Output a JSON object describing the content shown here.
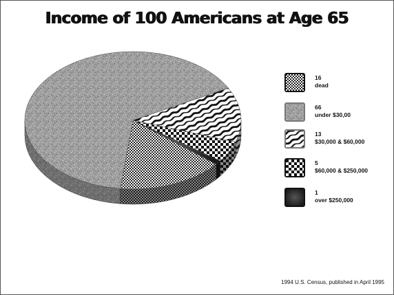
{
  "chart_data": {
    "type": "pie",
    "title": "Income of 100 Americans at Age 65",
    "source": "1994 U.S. Census, published in April 1995",
    "slices": [
      {
        "name": "dead",
        "value": 16,
        "count_label": "16",
        "label": "dead",
        "pattern": "pat-small-check"
      },
      {
        "name": "under $30,00",
        "value": 66,
        "count_label": "66",
        "label": "under $30,00",
        "pattern": "pat-granite"
      },
      {
        "name": "$30,000 & $60,000",
        "value": 13,
        "count_label": "13",
        "label": "$30,000 & $60,000",
        "pattern": "pat-zebra"
      },
      {
        "name": "$60,000 & $250,000",
        "value": 5,
        "count_label": "5",
        "label": "$60,000 & $250,000",
        "pattern": "pat-checker"
      },
      {
        "name": "over  $250,000",
        "value": 1,
        "count_label": "1",
        "label": "over  $250,000",
        "pattern": "pat-dark"
      }
    ],
    "legend_position": "right",
    "three_d": true
  }
}
